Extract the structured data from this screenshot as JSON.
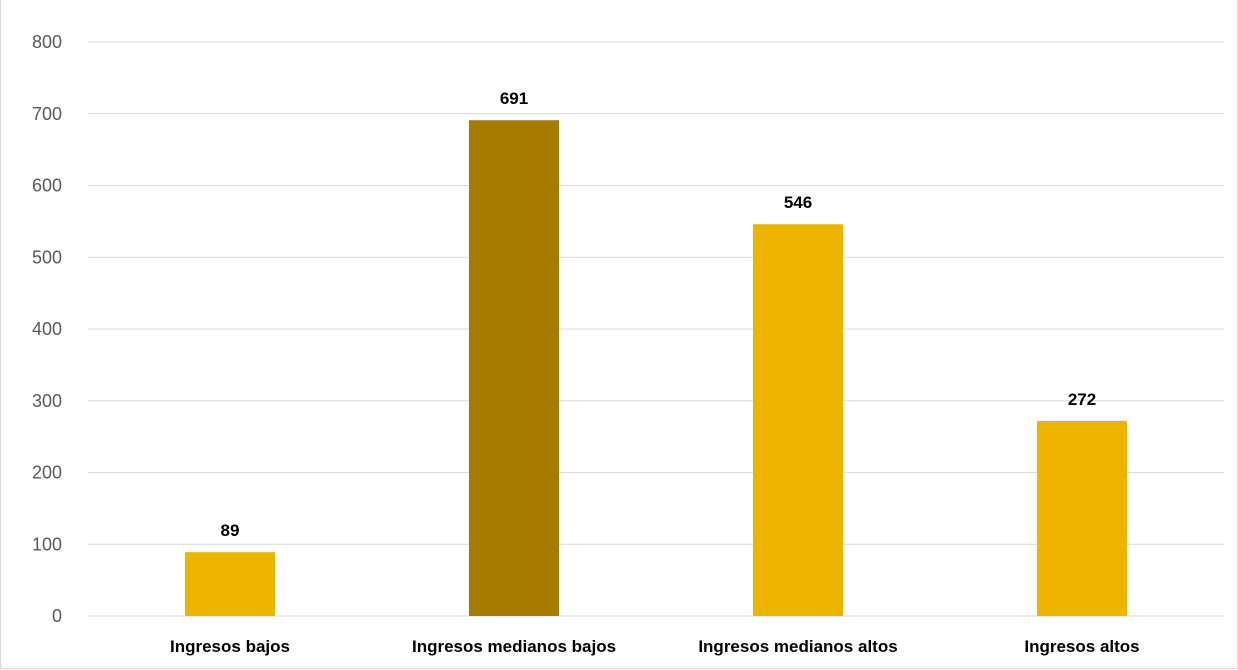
{
  "chart_data": {
    "type": "bar",
    "title": "",
    "xlabel": "",
    "ylabel": "",
    "categories": [
      "Ingresos bajos",
      "Ingresos medianos bajos",
      "Ingresos medianos altos",
      "Ingresos altos"
    ],
    "values": [
      89,
      691,
      546,
      272
    ],
    "data_labels": [
      "89",
      "691",
      "546",
      "272"
    ],
    "ylim": [
      0,
      800
    ],
    "yticks": [
      0,
      100,
      200,
      300,
      400,
      500,
      600,
      700,
      800
    ],
    "ytick_labels": [
      "0",
      "100",
      "200",
      "300",
      "400",
      "500",
      "600",
      "700",
      "800"
    ],
    "grid": true,
    "legend": "none",
    "colors": {
      "default_bar": "#EDB500",
      "highlight_bar": "#A67C00",
      "gridline": "#D9D9D9"
    },
    "highlighted_category": "Ingresos medianos bajos"
  }
}
